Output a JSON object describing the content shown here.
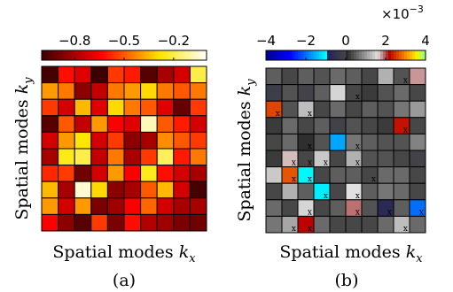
{
  "chart_data": [
    {
      "type": "heatmap",
      "panel_label": "(a)",
      "xlabel_text": "Spatial modes ",
      "xlabel_sym": "k",
      "xlabel_sub": "x",
      "ylabel_text": "Spatial modes ",
      "ylabel_sym": "k",
      "ylabel_sub": "y",
      "colorbar": {
        "colormap": "hot",
        "range": [
          -1.0,
          0.0
        ],
        "ticks": [
          -0.8,
          -0.5,
          -0.2
        ],
        "tick_labels": [
          "−0.8",
          "−0.5",
          "−0.2"
        ]
      },
      "values": [
        [
          -0.98,
          -0.62,
          -0.7,
          -1.0,
          -0.55,
          -0.6,
          -0.95,
          -0.8,
          -0.72,
          -0.2
        ],
        [
          -0.4,
          -0.45,
          -0.85,
          -0.75,
          -0.45,
          -0.4,
          -0.3,
          -0.45,
          -0.5,
          -0.45
        ],
        [
          -0.55,
          -0.72,
          -0.35,
          -0.7,
          -0.3,
          -0.45,
          -0.5,
          -0.7,
          -0.92,
          -0.55
        ],
        [
          -0.95,
          -0.5,
          -0.75,
          -0.4,
          -0.65,
          -0.7,
          -0.08,
          -0.5,
          -0.6,
          -0.72
        ],
        [
          -0.72,
          -0.4,
          -0.28,
          -0.72,
          -0.55,
          -0.85,
          -0.8,
          -0.42,
          -0.5,
          -0.55
        ],
        [
          -0.8,
          -0.25,
          -0.2,
          -0.75,
          -0.45,
          -0.8,
          -0.55,
          -0.18,
          -0.6,
          -0.45
        ],
        [
          -0.58,
          -0.55,
          -0.9,
          -0.72,
          -0.4,
          -0.65,
          -0.25,
          -0.62,
          -0.72,
          -0.8
        ],
        [
          -0.35,
          -0.8,
          -0.05,
          -0.3,
          -0.85,
          -0.8,
          -0.5,
          -0.35,
          -0.72,
          -0.98
        ],
        [
          -0.4,
          -0.72,
          -0.4,
          -0.88,
          -0.82,
          -0.65,
          -0.48,
          -0.72,
          -0.8,
          -0.8
        ],
        [
          -0.65,
          -0.85,
          -0.95,
          -0.55,
          -0.88,
          -0.62,
          -0.78,
          -0.82,
          -0.88,
          -0.9
        ]
      ]
    },
    {
      "type": "heatmap",
      "panel_label": "(b)",
      "xlabel_text": "Spatial modes ",
      "xlabel_sym": "k",
      "xlabel_sub": "x",
      "ylabel_text": "Spatial modes ",
      "ylabel_sym": "k",
      "ylabel_sub": "y",
      "colorbar": {
        "colormap": "jet-gray-hot",
        "range": [
          -4,
          4
        ],
        "ticks": [
          -4,
          -2,
          0,
          2,
          4
        ],
        "tick_labels": [
          "−4",
          "−2",
          "0",
          "2",
          "4"
        ],
        "multiplier_base": "×10",
        "multiplier_exp": "−3"
      },
      "cell_marker": "x",
      "values": [
        [
          0.5,
          0.3,
          0.5,
          0.4,
          0.6,
          0.5,
          0.3,
          1.2,
          0.4,
          1.8
        ],
        [
          -0.2,
          0.4,
          -0.1,
          0.5,
          1.5,
          0.3,
          0.2,
          0.4,
          0.6,
          0.3
        ],
        [
          2.6,
          0.4,
          1.3,
          0.3,
          0.6,
          0.3,
          0.5,
          0.4,
          0.7,
          1.0
        ],
        [
          0.2,
          0.6,
          0.3,
          0.5,
          -0.1,
          0.4,
          0.3,
          0.2,
          2.3,
          0.3
        ],
        [
          0.3,
          0.6,
          0.1,
          0.4,
          -1.6,
          0.7,
          0.5,
          0.4,
          0.4,
          0.8
        ],
        [
          0.2,
          1.7,
          0.3,
          1.4,
          0.3,
          1.2,
          0.4,
          0.4,
          0.3,
          -0.1
        ],
        [
          1.4,
          2.7,
          -1.0,
          0.3,
          0.5,
          0.5,
          0.3,
          0.6,
          0.6,
          0.3
        ],
        [
          0.3,
          1.2,
          0.5,
          -1.1,
          0.3,
          1.6,
          0.5,
          0.7,
          0.6,
          0.3
        ],
        [
          0.6,
          0.3,
          1.5,
          0.3,
          0.5,
          1.9,
          0.4,
          -0.7,
          0.5,
          -2.0
        ],
        [
          0.7,
          1.1,
          2.2,
          0.6,
          0.3,
          0.3,
          0.3,
          0.6,
          1.3,
          0.6
        ]
      ],
      "marked_cells": [
        [
          0,
          8
        ],
        [
          1,
          5
        ],
        [
          2,
          0
        ],
        [
          2,
          2
        ],
        [
          3,
          8
        ],
        [
          4,
          2
        ],
        [
          4,
          5
        ],
        [
          5,
          1
        ],
        [
          5,
          2
        ],
        [
          5,
          3
        ],
        [
          5,
          5
        ],
        [
          6,
          1
        ],
        [
          6,
          2
        ],
        [
          6,
          6
        ],
        [
          7,
          3
        ],
        [
          7,
          5
        ],
        [
          8,
          2
        ],
        [
          8,
          5
        ],
        [
          8,
          7
        ],
        [
          8,
          9
        ],
        [
          9,
          1
        ],
        [
          9,
          2
        ],
        [
          9,
          8
        ]
      ]
    }
  ]
}
